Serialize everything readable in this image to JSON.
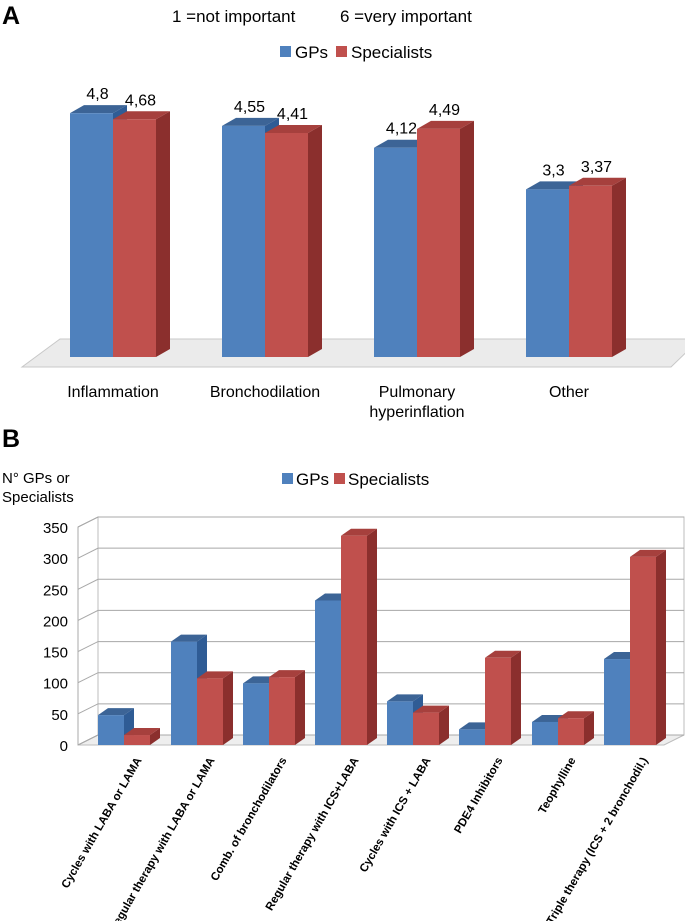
{
  "colors": {
    "gps": "#4f81bd",
    "gps_top": "#3c6496",
    "specialists": "#c0504d",
    "specialists_top": "#a6403d",
    "specialists_side": "#8b2f2d",
    "gps_side": "#2f5c95",
    "floor": "#e9e9e9",
    "axis": "#999999"
  },
  "chart_data": [
    {
      "type": "bar",
      "panel": "A",
      "scale_note_low": "1 =not important",
      "scale_note_high": "6 =very important",
      "legend": [
        "GPs",
        "Specialists"
      ],
      "legend_placement": "top-center",
      "categories": [
        {
          "lines": [
            "Inflammation"
          ]
        },
        {
          "lines": [
            "Bronchodilation"
          ]
        },
        {
          "lines": [
            "Pulmonary",
            "hyperinflation"
          ]
        },
        {
          "lines": [
            "Other"
          ]
        }
      ],
      "series": [
        {
          "name": "GPs",
          "values": [
            4.8,
            4.55,
            4.12,
            3.3
          ],
          "labels": [
            "4,8",
            "4,55",
            "4,12",
            "3,3"
          ]
        },
        {
          "name": "Specialists",
          "values": [
            4.68,
            4.41,
            4.49,
            3.37
          ],
          "labels": [
            "4,68",
            "4,41",
            "4,49",
            "3,37"
          ]
        }
      ],
      "ylim": [
        0,
        5.5
      ],
      "grid": false
    },
    {
      "type": "bar",
      "panel": "B",
      "ylabel_lines": [
        "N° GPs or",
        "Specialists"
      ],
      "legend": [
        "GPs",
        "Specialists"
      ],
      "legend_placement": "top-center",
      "categories": [
        "Cycles with LABA or LAMA",
        "Regular therapy with LABA or LAMA",
        "Comb. of bronchodilators",
        "Regular therapy with ICS+LABA",
        "Cycles with ICS + LABA",
        "PDE4 Inhibitors",
        "Teophylline",
        "Triple therapy (ICS + 2 bronchodil.)"
      ],
      "series": [
        {
          "name": "GPs",
          "values": [
            48,
            166,
            99,
            232,
            70,
            25,
            37,
            138
          ]
        },
        {
          "name": "Specialists",
          "values": [
            16,
            107,
            109,
            336,
            52,
            140,
            43,
            302
          ]
        }
      ],
      "yticks": [
        "0",
        "50",
        "100",
        "150",
        "200",
        "250",
        "300",
        "350"
      ],
      "ylim": [
        0,
        350
      ],
      "grid": true
    }
  ]
}
